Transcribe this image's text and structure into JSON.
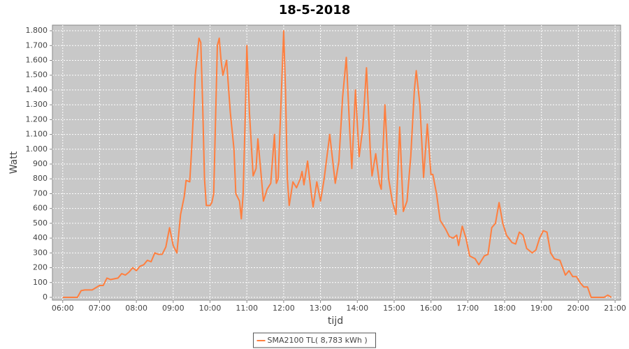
{
  "chart_data": {
    "type": "line",
    "title": "18-5-2018",
    "x_label": "tijd",
    "y_label": "Watt",
    "x": [
      6.0,
      6.4,
      6.5,
      6.6,
      6.8,
      7.0,
      7.1,
      7.2,
      7.3,
      7.5,
      7.6,
      7.7,
      7.8,
      7.9,
      8.0,
      8.1,
      8.2,
      8.3,
      8.4,
      8.5,
      8.6,
      8.7,
      8.8,
      8.9,
      9.0,
      9.1,
      9.2,
      9.3,
      9.35,
      9.45,
      9.5,
      9.6,
      9.7,
      9.75,
      9.8,
      9.85,
      9.9,
      10.0,
      10.05,
      10.1,
      10.2,
      10.25,
      10.3,
      10.35,
      10.45,
      10.55,
      10.65,
      10.7,
      10.8,
      10.85,
      10.9,
      10.97,
      11.0,
      11.07,
      11.17,
      11.25,
      11.3,
      11.38,
      11.45,
      11.55,
      11.65,
      11.75,
      11.8,
      11.85,
      11.95,
      12.0,
      12.05,
      12.1,
      12.15,
      12.25,
      12.35,
      12.45,
      12.5,
      12.55,
      12.65,
      12.75,
      12.8,
      12.9,
      13.0,
      13.1,
      13.25,
      13.4,
      13.5,
      13.6,
      13.7,
      13.8,
      13.85,
      13.95,
      14.05,
      14.15,
      14.25,
      14.35,
      14.4,
      14.5,
      14.6,
      14.65,
      14.75,
      14.85,
      14.95,
      15.05,
      15.15,
      15.25,
      15.35,
      15.45,
      15.55,
      15.6,
      15.7,
      15.8,
      15.9,
      16.0,
      16.05,
      16.15,
      16.25,
      16.4,
      16.5,
      16.6,
      16.7,
      16.75,
      16.85,
      16.95,
      17.05,
      17.2,
      17.3,
      17.45,
      17.55,
      17.65,
      17.75,
      17.85,
      17.95,
      18.05,
      18.2,
      18.3,
      18.4,
      18.5,
      18.6,
      18.75,
      18.85,
      18.95,
      19.05,
      19.15,
      19.25,
      19.35,
      19.5,
      19.65,
      19.75,
      19.85,
      19.95,
      20.05,
      20.15,
      20.25,
      20.35,
      20.7,
      20.8,
      20.9
    ],
    "series": [
      {
        "name": "SMA2100 TL( 8,783 kWh )",
        "color": "#ff7f3f",
        "values": [
          0,
          0,
          45,
          50,
          50,
          80,
          80,
          130,
          120,
          130,
          160,
          150,
          170,
          200,
          180,
          210,
          220,
          250,
          240,
          300,
          290,
          290,
          340,
          470,
          350,
          300,
          560,
          680,
          790,
          780,
          1000,
          1500,
          1750,
          1720,
          1300,
          800,
          620,
          620,
          640,
          700,
          1700,
          1750,
          1600,
          1500,
          1600,
          1250,
          1000,
          700,
          650,
          530,
          700,
          1350,
          1700,
          1250,
          820,
          870,
          1070,
          850,
          650,
          730,
          770,
          1100,
          770,
          800,
          1470,
          1800,
          1400,
          800,
          620,
          780,
          740,
          800,
          850,
          760,
          920,
          700,
          610,
          780,
          650,
          800,
          1100,
          770,
          920,
          1350,
          1620,
          1100,
          870,
          1400,
          950,
          1150,
          1550,
          1000,
          820,
          970,
          770,
          730,
          1300,
          800,
          650,
          560,
          1150,
          580,
          650,
          950,
          1400,
          1530,
          1300,
          810,
          1170,
          830,
          830,
          700,
          520,
          460,
          410,
          400,
          420,
          350,
          480,
          400,
          280,
          260,
          220,
          280,
          290,
          470,
          500,
          640,
          500,
          420,
          370,
          360,
          440,
          420,
          330,
          300,
          320,
          400,
          450,
          440,
          300,
          260,
          250,
          150,
          180,
          140,
          140,
          100,
          70,
          70,
          0,
          0,
          15,
          0
        ]
      }
    ],
    "xlim": [
      5.72,
      21.15
    ],
    "ylim": [
      -19,
      1838
    ],
    "xticks": [
      {
        "value": 6,
        "label": "06:00"
      },
      {
        "value": 7,
        "label": "07:00"
      },
      {
        "value": 8,
        "label": "08:00"
      },
      {
        "value": 9,
        "label": "09:00"
      },
      {
        "value": 10,
        "label": "10:00"
      },
      {
        "value": 11,
        "label": "11:00"
      },
      {
        "value": 12,
        "label": "12:00"
      },
      {
        "value": 13,
        "label": "13:00"
      },
      {
        "value": 14,
        "label": "14:00"
      },
      {
        "value": 15,
        "label": "15:00"
      },
      {
        "value": 16,
        "label": "16:00"
      },
      {
        "value": 17,
        "label": "17:00"
      },
      {
        "value": 18,
        "label": "18:00"
      },
      {
        "value": 19,
        "label": "19:00"
      },
      {
        "value": 20,
        "label": "20:00"
      },
      {
        "value": 21,
        "label": "21:00"
      }
    ],
    "yticks": [
      0,
      100,
      200,
      300,
      400,
      500,
      600,
      700,
      800,
      900,
      {
        "value": 1000,
        "label": "1.000"
      },
      {
        "value": 1100,
        "label": "1.100"
      },
      {
        "value": 1200,
        "label": "1.200"
      },
      {
        "value": 1300,
        "label": "1.300"
      },
      {
        "value": 1400,
        "label": "1.400"
      },
      {
        "value": 1500,
        "label": "1.500"
      },
      {
        "value": 1600,
        "label": "1.600"
      },
      {
        "value": 1700,
        "label": "1.700"
      },
      {
        "value": 1800,
        "label": "1.800"
      }
    ],
    "grid": true,
    "legend": "bottom"
  }
}
